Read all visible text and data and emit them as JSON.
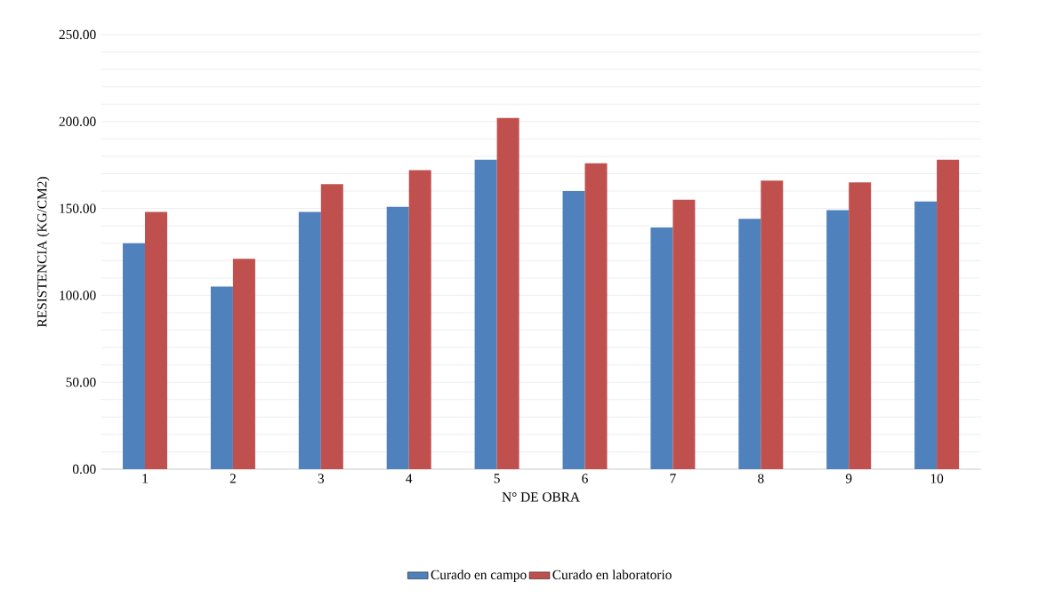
{
  "chart_data": {
    "type": "bar",
    "xlabel": "N° DE OBRA",
    "ylabel": "RESISTENCIA (KG/CM2)",
    "categories": [
      "1",
      "2",
      "3",
      "4",
      "5",
      "6",
      "7",
      "8",
      "9",
      "10"
    ],
    "series": [
      {
        "name": "Curado en campo",
        "color": "#4f81bd",
        "values": [
          130,
          105,
          148,
          151,
          178,
          160,
          139,
          144,
          149,
          154
        ]
      },
      {
        "name": "Curado en laboratorio",
        "color": "#c0504d",
        "values": [
          148,
          121,
          164,
          172,
          202,
          176,
          155,
          166,
          165,
          178
        ]
      }
    ],
    "ylim": [
      0,
      250
    ],
    "yticks": [
      {
        "value": 0,
        "label": "0.00"
      },
      {
        "value": 10,
        "label": null
      },
      {
        "value": 20,
        "label": null
      },
      {
        "value": 30,
        "label": null
      },
      {
        "value": 40,
        "label": null
      },
      {
        "value": 50,
        "label": "50.00"
      },
      {
        "value": 60,
        "label": null
      },
      {
        "value": 70,
        "label": null
      },
      {
        "value": 80,
        "label": null
      },
      {
        "value": 90,
        "label": null
      },
      {
        "value": 100,
        "label": "100.00"
      },
      {
        "value": 110,
        "label": null
      },
      {
        "value": 120,
        "label": null
      },
      {
        "value": 130,
        "label": null
      },
      {
        "value": 140,
        "label": null
      },
      {
        "value": 150,
        "label": "150.00"
      },
      {
        "value": 160,
        "label": null
      },
      {
        "value": 170,
        "label": null
      },
      {
        "value": 180,
        "label": null
      },
      {
        "value": 190,
        "label": null
      },
      {
        "value": 200,
        "label": "200.00"
      },
      {
        "value": 210,
        "label": null
      },
      {
        "value": 220,
        "label": null
      },
      {
        "value": 230,
        "label": null
      },
      {
        "value": 240,
        "label": null
      },
      {
        "value": 250,
        "label": "250.00"
      }
    ],
    "grid": "y",
    "legend": "bottom"
  }
}
